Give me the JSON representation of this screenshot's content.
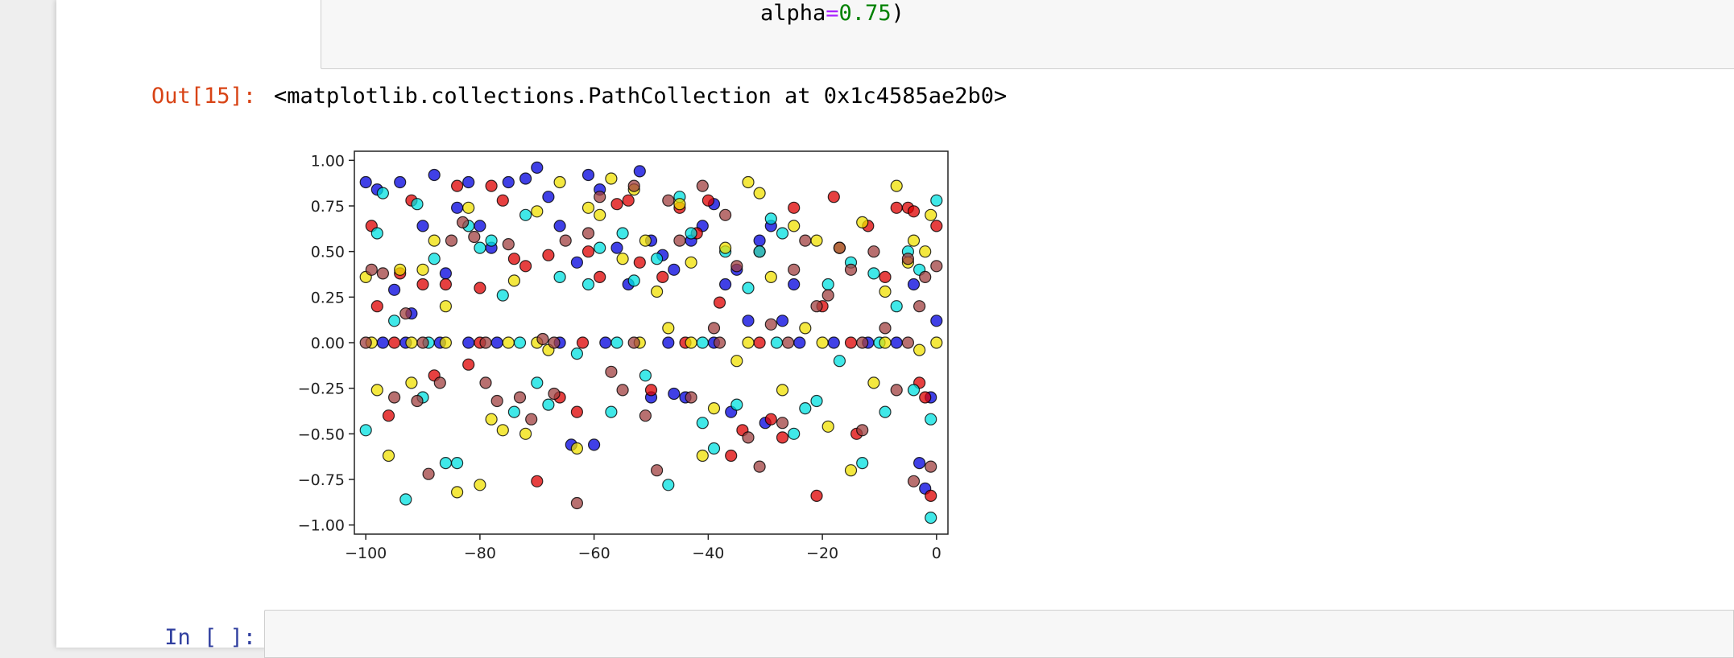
{
  "code_cell": {
    "line_prefix": "alpha",
    "line_op": "=",
    "line_value": "0.75",
    "line_suffix": ")"
  },
  "output": {
    "prompt": "Out[15]:",
    "text": "<matplotlib.collections.PathCollection at 0x1c4585ae2b0>"
  },
  "next_cell": {
    "prompt": "In [ ]:"
  },
  "chart_data": {
    "type": "scatter",
    "xlim": [
      -102,
      2
    ],
    "ylim": [
      -1.05,
      1.05
    ],
    "xticks": [
      -100,
      -80,
      -60,
      -40,
      -20,
      0
    ],
    "yticks": [
      -1.0,
      -0.75,
      -0.5,
      -0.25,
      0.0,
      0.25,
      0.5,
      0.75,
      1.0
    ],
    "xtick_labels": [
      "−100",
      "−80",
      "−60",
      "−40",
      "−20",
      "0"
    ],
    "ytick_labels": [
      "−1.00",
      "−0.75",
      "−0.50",
      "−0.25",
      "0.00",
      "0.25",
      "0.50",
      "0.75",
      "1.00"
    ],
    "grid": false,
    "alpha": 0.75,
    "series": [
      {
        "color": "#0000dd",
        "points": [
          [
            -100,
            0.88
          ],
          [
            -98,
            0.84
          ],
          [
            -95,
            0.29
          ],
          [
            -94,
            0.88
          ],
          [
            -92,
            0.16
          ],
          [
            -90,
            0.64
          ],
          [
            -88,
            0.92
          ],
          [
            -86,
            0.38
          ],
          [
            -84,
            0.74
          ],
          [
            -82,
            0.88
          ],
          [
            -80,
            0.64
          ],
          [
            -78,
            0.52
          ],
          [
            -75,
            0.88
          ],
          [
            -72,
            0.9
          ],
          [
            -70,
            0.96
          ],
          [
            -68,
            0.8
          ],
          [
            -66,
            0.64
          ],
          [
            -63,
            0.44
          ],
          [
            -61,
            0.92
          ],
          [
            -59,
            0.84
          ],
          [
            -56,
            0.52
          ],
          [
            -54,
            0.32
          ],
          [
            -52,
            0.94
          ],
          [
            -50,
            0.56
          ],
          [
            -48,
            0.48
          ],
          [
            -46,
            0.4
          ],
          [
            -43,
            0.56
          ],
          [
            -41,
            0.64
          ],
          [
            -39,
            0.76
          ],
          [
            -37,
            0.32
          ],
          [
            -35,
            0.4
          ],
          [
            -33,
            0.12
          ],
          [
            -31,
            0.56
          ],
          [
            -29,
            0.64
          ],
          [
            -27,
            0.12
          ],
          [
            -25,
            0.32
          ],
          [
            -4,
            0.32
          ],
          [
            -3,
            -0.66
          ],
          [
            -2,
            -0.8
          ],
          [
            -1,
            -0.3
          ],
          [
            0,
            0.12
          ],
          [
            -64,
            -0.56
          ],
          [
            -60,
            -0.56
          ],
          [
            -50,
            -0.3
          ],
          [
            -46,
            -0.28
          ],
          [
            -44,
            -0.3
          ],
          [
            -36,
            -0.38
          ],
          [
            -30,
            -0.44
          ],
          [
            -97,
            0.0
          ],
          [
            -93,
            0.0
          ],
          [
            -87,
            0.0
          ],
          [
            -82,
            0.0
          ],
          [
            -77,
            0.0
          ],
          [
            -66,
            0.0
          ],
          [
            -58,
            0.0
          ],
          [
            -47,
            0.0
          ],
          [
            -39,
            0.0
          ],
          [
            -24,
            0.0
          ],
          [
            -18,
            0.0
          ],
          [
            -12,
            0.0
          ],
          [
            -7,
            0.0
          ]
        ]
      },
      {
        "color": "#dd0000",
        "points": [
          [
            -99,
            0.64
          ],
          [
            -98,
            0.2
          ],
          [
            -96,
            -0.4
          ],
          [
            -94,
            0.38
          ],
          [
            -92,
            0.78
          ],
          [
            -90,
            0.32
          ],
          [
            -88,
            -0.18
          ],
          [
            -86,
            0.32
          ],
          [
            -84,
            0.86
          ],
          [
            -82,
            -0.12
          ],
          [
            -80,
            0.3
          ],
          [
            -78,
            0.86
          ],
          [
            -76,
            0.78
          ],
          [
            -74,
            0.46
          ],
          [
            -72,
            0.42
          ],
          [
            -70,
            -0.76
          ],
          [
            -68,
            0.48
          ],
          [
            -66,
            -0.3
          ],
          [
            -63,
            -0.38
          ],
          [
            -61,
            0.5
          ],
          [
            -59,
            0.36
          ],
          [
            -56,
            0.76
          ],
          [
            -54,
            0.78
          ],
          [
            -52,
            0.44
          ],
          [
            -50,
            -0.26
          ],
          [
            -48,
            0.36
          ],
          [
            -45,
            0.74
          ],
          [
            -42,
            0.6
          ],
          [
            -40,
            0.78
          ],
          [
            -38,
            0.22
          ],
          [
            -36,
            -0.62
          ],
          [
            -34,
            -0.48
          ],
          [
            -31,
            0.5
          ],
          [
            -29,
            -0.42
          ],
          [
            -27,
            -0.52
          ],
          [
            -25,
            0.74
          ],
          [
            -21,
            -0.84
          ],
          [
            -20,
            0.2
          ],
          [
            -18,
            0.8
          ],
          [
            -14,
            -0.5
          ],
          [
            -12,
            0.64
          ],
          [
            -9,
            0.36
          ],
          [
            -7,
            0.74
          ],
          [
            -5,
            0.74
          ],
          [
            -4,
            0.72
          ],
          [
            -3,
            -0.22
          ],
          [
            -2,
            -0.3
          ],
          [
            -1,
            -0.84
          ],
          [
            0,
            0.64
          ],
          [
            -95,
            0.0
          ],
          [
            -80,
            0.0
          ],
          [
            -62,
            0.0
          ],
          [
            -44,
            0.0
          ],
          [
            -31,
            0.0
          ],
          [
            -15,
            0.0
          ]
        ]
      },
      {
        "color": "#00e0e0",
        "points": [
          [
            -100,
            -0.48
          ],
          [
            -98,
            0.6
          ],
          [
            -97,
            0.82
          ],
          [
            -95,
            0.12
          ],
          [
            -93,
            -0.86
          ],
          [
            -91,
            0.76
          ],
          [
            -90,
            -0.3
          ],
          [
            -88,
            0.46
          ],
          [
            -86,
            -0.66
          ],
          [
            -84,
            -0.66
          ],
          [
            -82,
            0.64
          ],
          [
            -80,
            0.52
          ],
          [
            -78,
            0.56
          ],
          [
            -76,
            0.26
          ],
          [
            -74,
            -0.38
          ],
          [
            -72,
            0.7
          ],
          [
            -70,
            -0.22
          ],
          [
            -68,
            -0.34
          ],
          [
            -66,
            0.36
          ],
          [
            -63,
            -0.06
          ],
          [
            -61,
            0.32
          ],
          [
            -59,
            0.52
          ],
          [
            -57,
            -0.38
          ],
          [
            -55,
            0.6
          ],
          [
            -53,
            0.34
          ],
          [
            -51,
            -0.18
          ],
          [
            -49,
            0.46
          ],
          [
            -47,
            -0.78
          ],
          [
            -45,
            0.8
          ],
          [
            -43,
            0.6
          ],
          [
            -41,
            -0.44
          ],
          [
            -39,
            -0.58
          ],
          [
            -37,
            0.5
          ],
          [
            -35,
            -0.34
          ],
          [
            -33,
            0.3
          ],
          [
            -31,
            0.5
          ],
          [
            -29,
            0.68
          ],
          [
            -27,
            0.6
          ],
          [
            -25,
            -0.5
          ],
          [
            -23,
            -0.36
          ],
          [
            -21,
            -0.32
          ],
          [
            -19,
            0.32
          ],
          [
            -17,
            -0.1
          ],
          [
            -15,
            0.44
          ],
          [
            -13,
            -0.66
          ],
          [
            -11,
            0.38
          ],
          [
            -9,
            -0.38
          ],
          [
            -7,
            0.2
          ],
          [
            -5,
            0.5
          ],
          [
            -4,
            -0.26
          ],
          [
            -3,
            0.4
          ],
          [
            -1,
            -0.96
          ],
          [
            0,
            0.78
          ],
          [
            -1,
            -0.42
          ],
          [
            -89,
            0.0
          ],
          [
            -73,
            0.0
          ],
          [
            -56,
            0.0
          ],
          [
            -41,
            0.0
          ],
          [
            -28,
            0.0
          ],
          [
            -10,
            0.0
          ]
        ]
      },
      {
        "color": "#f0e000",
        "points": [
          [
            -100,
            0.36
          ],
          [
            -98,
            -0.26
          ],
          [
            -96,
            -0.62
          ],
          [
            -94,
            0.4
          ],
          [
            -92,
            -0.22
          ],
          [
            -90,
            0.4
          ],
          [
            -88,
            0.56
          ],
          [
            -86,
            0.2
          ],
          [
            -84,
            -0.82
          ],
          [
            -82,
            0.74
          ],
          [
            -80,
            -0.78
          ],
          [
            -78,
            -0.42
          ],
          [
            -76,
            -0.48
          ],
          [
            -74,
            0.34
          ],
          [
            -72,
            -0.5
          ],
          [
            -70,
            0.72
          ],
          [
            -68,
            -0.04
          ],
          [
            -66,
            0.88
          ],
          [
            -63,
            -0.58
          ],
          [
            -61,
            0.74
          ],
          [
            -59,
            0.7
          ],
          [
            -57,
            0.9
          ],
          [
            -55,
            0.46
          ],
          [
            -53,
            0.84
          ],
          [
            -51,
            0.56
          ],
          [
            -49,
            0.28
          ],
          [
            -47,
            0.08
          ],
          [
            -45,
            0.76
          ],
          [
            -43,
            0.44
          ],
          [
            -41,
            -0.62
          ],
          [
            -39,
            -0.36
          ],
          [
            -37,
            0.52
          ],
          [
            -35,
            -0.1
          ],
          [
            -33,
            0.88
          ],
          [
            -31,
            0.82
          ],
          [
            -29,
            0.36
          ],
          [
            -27,
            -0.26
          ],
          [
            -25,
            0.64
          ],
          [
            -23,
            0.08
          ],
          [
            -21,
            0.56
          ],
          [
            -19,
            -0.46
          ],
          [
            -17,
            0.52
          ],
          [
            -15,
            -0.7
          ],
          [
            -13,
            0.66
          ],
          [
            -11,
            -0.22
          ],
          [
            -9,
            0.28
          ],
          [
            -7,
            0.86
          ],
          [
            -5,
            0.44
          ],
          [
            -4,
            0.56
          ],
          [
            -3,
            -0.04
          ],
          [
            -2,
            0.5
          ],
          [
            -1,
            0.7
          ],
          [
            -99,
            0.0
          ],
          [
            -92,
            0.0
          ],
          [
            -86,
            0.0
          ],
          [
            -75,
            0.0
          ],
          [
            -70,
            0.0
          ],
          [
            -52,
            0.0
          ],
          [
            -43,
            0.0
          ],
          [
            -33,
            0.0
          ],
          [
            -20,
            0.0
          ],
          [
            -9,
            0.0
          ],
          [
            0,
            0.0
          ]
        ]
      },
      {
        "color": "#a04040",
        "points": [
          [
            -99,
            0.4
          ],
          [
            -97,
            0.38
          ],
          [
            -95,
            -0.3
          ],
          [
            -93,
            0.16
          ],
          [
            -91,
            -0.32
          ],
          [
            -89,
            -0.72
          ],
          [
            -87,
            -0.22
          ],
          [
            -85,
            0.56
          ],
          [
            -83,
            0.66
          ],
          [
            -81,
            0.58
          ],
          [
            -79,
            -0.22
          ],
          [
            -77,
            -0.32
          ],
          [
            -75,
            0.54
          ],
          [
            -73,
            -0.3
          ],
          [
            -71,
            -0.42
          ],
          [
            -69,
            0.02
          ],
          [
            -67,
            -0.28
          ],
          [
            -65,
            0.56
          ],
          [
            -63,
            -0.88
          ],
          [
            -61,
            0.6
          ],
          [
            -59,
            0.8
          ],
          [
            -57,
            -0.16
          ],
          [
            -55,
            -0.26
          ],
          [
            -53,
            0.86
          ],
          [
            -51,
            -0.4
          ],
          [
            -49,
            -0.7
          ],
          [
            -47,
            0.78
          ],
          [
            -45,
            0.56
          ],
          [
            -43,
            -0.3
          ],
          [
            -41,
            0.86
          ],
          [
            -39,
            0.08
          ],
          [
            -37,
            0.7
          ],
          [
            -35,
            0.42
          ],
          [
            -33,
            -0.52
          ],
          [
            -31,
            -0.68
          ],
          [
            -29,
            0.1
          ],
          [
            -27,
            -0.44
          ],
          [
            -25,
            0.4
          ],
          [
            -23,
            0.56
          ],
          [
            -21,
            0.2
          ],
          [
            -19,
            0.26
          ],
          [
            -17,
            0.52
          ],
          [
            -15,
            0.4
          ],
          [
            -13,
            -0.48
          ],
          [
            -11,
            0.5
          ],
          [
            -9,
            0.08
          ],
          [
            -7,
            -0.26
          ],
          [
            -5,
            0.46
          ],
          [
            -4,
            -0.76
          ],
          [
            -3,
            0.2
          ],
          [
            -2,
            0.36
          ],
          [
            -1,
            -0.68
          ],
          [
            0,
            0.42
          ],
          [
            -100,
            0.0
          ],
          [
            -90,
            0.0
          ],
          [
            -79,
            0.0
          ],
          [
            -67,
            0.0
          ],
          [
            -53,
            0.0
          ],
          [
            -38,
            0.0
          ],
          [
            -26,
            0.0
          ],
          [
            -13,
            0.0
          ],
          [
            -5,
            0.0
          ]
        ]
      }
    ]
  }
}
